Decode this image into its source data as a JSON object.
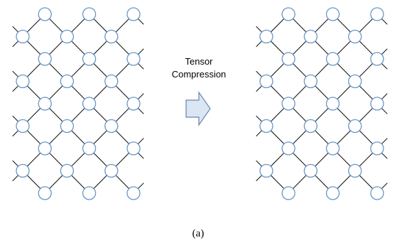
{
  "figure": {
    "arrow_label_line1": "Tensor",
    "arrow_label_line2": "Compression",
    "caption": "(a)"
  },
  "colors": {
    "node_stroke": "#6a96c8",
    "node_fill": "#ffffff",
    "edge_default": "#1a1a1a",
    "edge_highlight": "#c42121",
    "edge_compressed": "#2bb84a",
    "arrow_fill": "#dbe6f4",
    "arrow_stroke": "#6a86a8"
  },
  "networks": [
    {
      "id": "left-network",
      "red_edges": [
        "1-1-2-2",
        "2-2-1-3",
        "3-1-2-2",
        "3-3-2-4",
        "4-2-5-3",
        "4-4-5-3",
        "6-2-5-3",
        "6-4-5-3",
        "7-1-6-2",
        "7-3-6-4",
        "8-2-9-1",
        "8-2-7-3"
      ],
      "green_edges": []
    },
    {
      "id": "right-network",
      "red_edges": [
        "1-1-2-2",
        "2-2-1-3",
        "3-1-2-2",
        "3-3-2-4",
        "6-2-5-3",
        "7-1-6-2",
        "7-3-6-4",
        "8-2-9-1",
        "8-2-7-3"
      ],
      "green_edges": [
        "2-2-3-3",
        "3-3-4-2",
        "4-4-5-3",
        "8-4-9-5"
      ]
    }
  ]
}
